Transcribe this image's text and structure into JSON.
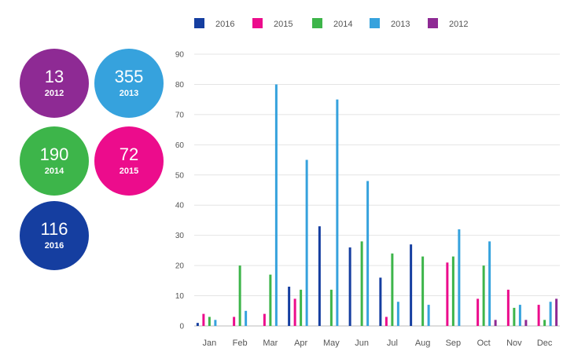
{
  "summary": [
    {
      "value": "13",
      "year": "2012",
      "color": "#8e2a94"
    },
    {
      "value": "355",
      "year": "2013",
      "color": "#36a2dd"
    },
    {
      "value": "190",
      "year": "2014",
      "color": "#3db54a"
    },
    {
      "value": "72",
      "year": "2015",
      "color": "#ec0c8c"
    },
    {
      "value": "116",
      "year": "2016",
      "color": "#153ea0"
    }
  ],
  "chart_data": {
    "type": "bar",
    "categories": [
      "Jan",
      "Feb",
      "Mar",
      "Apr",
      "May",
      "Jun",
      "Jul",
      "Aug",
      "Sep",
      "Oct",
      "Nov",
      "Dec"
    ],
    "ylim": [
      0,
      90
    ],
    "yticks": [
      0,
      10,
      20,
      30,
      40,
      50,
      60,
      70,
      80,
      90
    ],
    "grid": true,
    "legend_position": "top",
    "series": [
      {
        "name": "2016",
        "color": "#153ea0",
        "values": [
          1,
          0,
          0,
          13,
          33,
          26,
          16,
          27,
          0,
          0,
          0,
          0
        ]
      },
      {
        "name": "2015",
        "color": "#ec0c8c",
        "values": [
          4,
          3,
          4,
          9,
          0,
          0,
          3,
          0,
          21,
          9,
          12,
          7
        ]
      },
      {
        "name": "2014",
        "color": "#3db54a",
        "values": [
          3,
          20,
          17,
          12,
          12,
          28,
          24,
          23,
          23,
          20,
          6,
          2
        ]
      },
      {
        "name": "2013",
        "color": "#36a2dd",
        "values": [
          2,
          5,
          80,
          55,
          75,
          48,
          8,
          7,
          32,
          28,
          7,
          8
        ]
      },
      {
        "name": "2012",
        "color": "#8e2a94",
        "values": [
          0,
          0,
          0,
          0,
          0,
          0,
          0,
          0,
          0,
          2,
          2,
          9
        ]
      }
    ]
  }
}
